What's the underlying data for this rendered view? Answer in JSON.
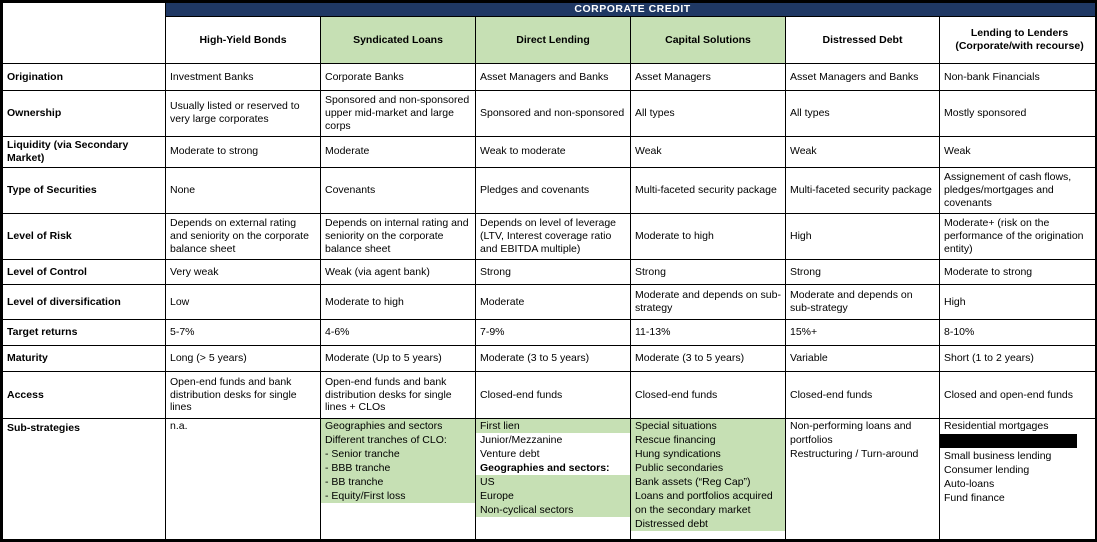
{
  "title": "CORPORATE CREDIT",
  "colors": {
    "navy": "#1F3864",
    "green": "#C6E0B4"
  },
  "columns": [
    {
      "label": "High-Yield Bonds",
      "highlight": false
    },
    {
      "label": "Syndicated Loans",
      "highlight": true
    },
    {
      "label": "Direct Lending",
      "highlight": true
    },
    {
      "label": "Capital Solutions",
      "highlight": true
    },
    {
      "label": "Distressed Debt",
      "highlight": false
    },
    {
      "label": "Lending to Lenders (Corporate/with recourse)",
      "highlight": false
    }
  ],
  "rows": [
    {
      "label": "Origination",
      "cells": [
        "Investment Banks",
        "Corporate Banks",
        "Asset Managers and Banks",
        "Asset Managers",
        "Asset Managers and Banks",
        "Non-bank Financials"
      ]
    },
    {
      "label": "Ownership",
      "cells": [
        "Usually listed or reserved to very large corporates",
        "Sponsored and non-sponsored upper mid-market and large corps",
        "Sponsored and non-sponsored",
        "All types",
        "All types",
        "Mostly sponsored"
      ]
    },
    {
      "label": "Liquidity (via Secondary Market)",
      "cells": [
        "Moderate to strong",
        "Moderate",
        "Weak to moderate",
        "Weak",
        "Weak",
        "Weak"
      ]
    },
    {
      "label": "Type of Securities",
      "cells": [
        "None",
        "Covenants",
        "Pledges and covenants",
        "Multi-faceted security package",
        "Multi-faceted security package",
        "Assignement of cash flows, pledges/mortgages and covenants"
      ]
    },
    {
      "label": "Level of Risk",
      "cells": [
        "Depends on external rating and seniority on the corporate balance sheet",
        "Depends on internal rating and seniority on the corporate balance sheet",
        "Depends on level of leverage (LTV, Interest coverage ratio and EBITDA multiple)",
        "Moderate to high",
        "High",
        "Moderate+ (risk on the performance of the origination entity)"
      ]
    },
    {
      "label": "Level of Control",
      "cells": [
        "Very weak",
        "Weak (via agent bank)",
        "Strong",
        "Strong",
        "Strong",
        "Moderate to strong"
      ]
    },
    {
      "label": "Level of diversification",
      "cells": [
        "Low",
        "Moderate to high",
        "Moderate",
        "Moderate and depends on sub-strategy",
        "Moderate and depends on sub-strategy",
        "High"
      ]
    },
    {
      "label": "Target returns",
      "cells": [
        "5-7%",
        "4-6%",
        "7-9%",
        "11-13%",
        "15%+",
        "8-10%"
      ]
    },
    {
      "label": "Maturity",
      "cells": [
        "Long (> 5 years)",
        "Moderate (Up to 5 years)",
        "Moderate (3 to 5 years)",
        "Moderate (3 to 5 years)",
        "Variable",
        "Short (1 to 2 years)"
      ]
    },
    {
      "label": "Access",
      "cells": [
        "Open-end funds and bank distribution desks for single lines",
        "Open-end funds and bank distribution desks for single lines + CLOs",
        "Closed-end funds",
        "Closed-end funds",
        "Closed-end funds",
        "Closed and open-end funds"
      ]
    }
  ],
  "sub_strategies_row": {
    "label": "Sub-strategies",
    "cells": [
      {
        "lines": [
          {
            "text": "n.a."
          }
        ]
      },
      {
        "lines": [
          {
            "text": "Geographies and sectors",
            "green": true
          },
          {
            "text": "Different tranches of CLO:",
            "green": true
          },
          {
            "text": "- Senior tranche",
            "green": true
          },
          {
            "text": "- BBB tranche",
            "green": true
          },
          {
            "text": "- BB tranche",
            "green": true
          },
          {
            "text": "- Equity/First loss",
            "green": true
          }
        ]
      },
      {
        "lines": [
          {
            "text": "First lien",
            "green": true
          },
          {
            "text": "Junior/Mezzanine"
          },
          {
            "text": "Venture debt"
          },
          {
            "text": "Geographies and sectors:",
            "bold": true
          },
          {
            "text": "US",
            "green": true
          },
          {
            "text": "Europe",
            "green": true
          },
          {
            "text": "Non-cyclical sectors",
            "green": true
          }
        ]
      },
      {
        "lines": [
          {
            "text": "Special situations",
            "green": true
          },
          {
            "text": "Rescue financing",
            "green": true
          },
          {
            "text": "Hung syndications",
            "green": true
          },
          {
            "text": "Public secondaries",
            "green": true
          },
          {
            "text": "Bank assets (“Reg Cap”)",
            "green": true
          },
          {
            "text": "Loans and portfolios acquired on the secondary market",
            "green": true
          },
          {
            "text": "Distressed debt",
            "green": true
          }
        ]
      },
      {
        "lines": [
          {
            "text": "Non-performing loans and portfolios"
          },
          {
            "text": "Restructuring / Turn-around"
          }
        ]
      },
      {
        "lines": [
          {
            "text": "Residential mortgages"
          },
          {
            "text": "",
            "redacted": true
          },
          {
            "text": "Small business lending"
          },
          {
            "text": "Consumer lending"
          },
          {
            "text": "Auto-loans"
          },
          {
            "text": "Fund finance"
          }
        ]
      }
    ]
  }
}
